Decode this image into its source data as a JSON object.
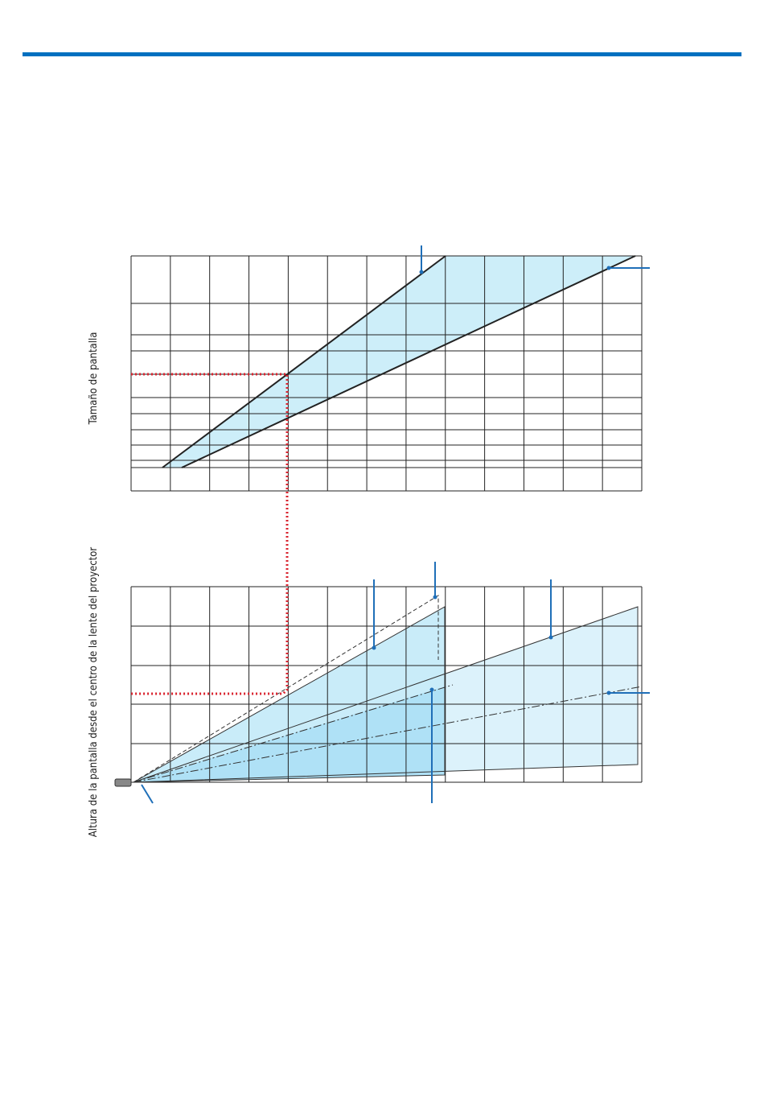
{
  "axes": {
    "screen_size_label": "Tamaño de pantalla",
    "screen_height_label": "Altura de la pantalla desde el centro de la lente del proyector"
  }
}
